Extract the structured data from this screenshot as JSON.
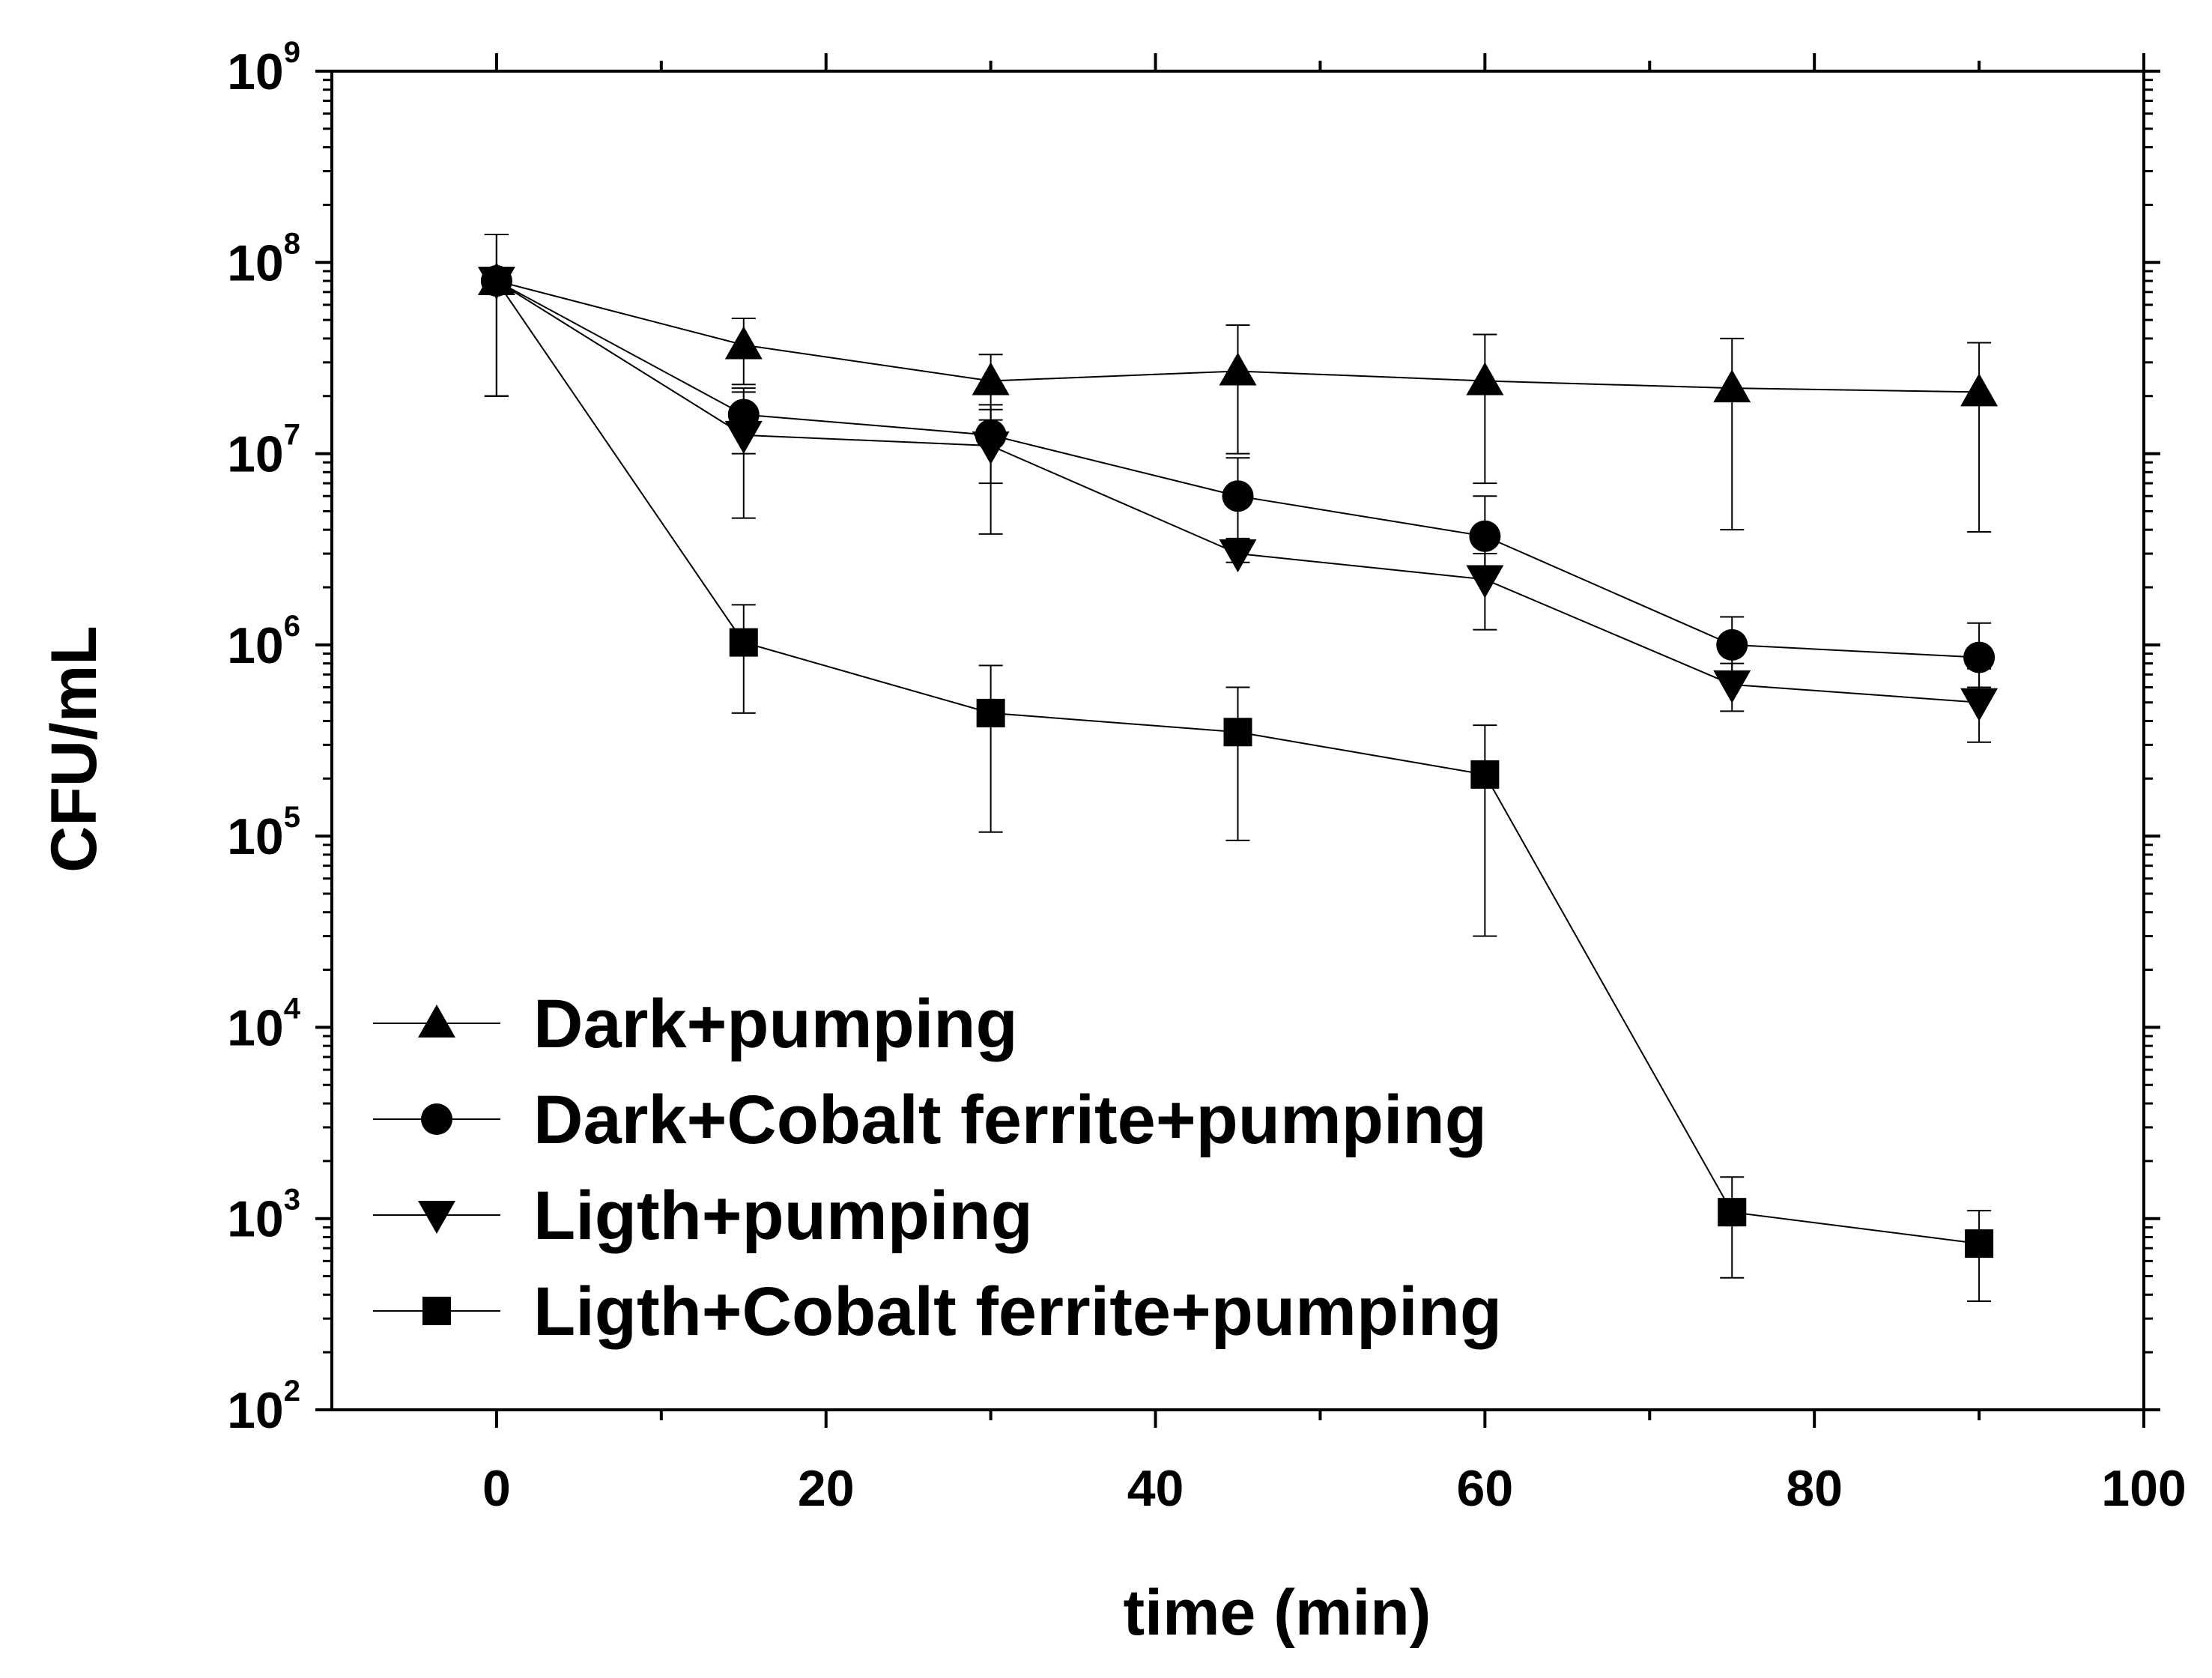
{
  "chart_data": {
    "type": "line",
    "title": "",
    "xlabel": "time (min)",
    "ylabel": "CFU/mL",
    "xlim": [
      -10,
      100
    ],
    "ylim": [
      100,
      1000000000
    ],
    "yscale": "log",
    "xticks": [
      "0",
      "20",
      "40",
      "60",
      "80",
      "100"
    ],
    "yticks": [
      {
        "base": "10",
        "exp": "2"
      },
      {
        "base": "10",
        "exp": "3"
      },
      {
        "base": "10",
        "exp": "4"
      },
      {
        "base": "10",
        "exp": "5"
      },
      {
        "base": "10",
        "exp": "6"
      },
      {
        "base": "10",
        "exp": "7"
      },
      {
        "base": "10",
        "exp": "8"
      },
      {
        "base": "10",
        "exp": "9"
      }
    ],
    "legend_position": "bottom-left",
    "x": [
      0,
      15,
      30,
      45,
      60,
      75,
      90
    ],
    "series": [
      {
        "name": "Dark+pumping",
        "marker": "triangle-up",
        "values": [
          80000000,
          37000000,
          24000000,
          27000000,
          24000000,
          22000000,
          21000000
        ],
        "err_low": [
          20000000,
          23000000,
          15000000,
          10000000,
          7000000,
          4000000,
          3900000
        ],
        "err_high": [
          140000000,
          51000000,
          33000000,
          47000000,
          42000000,
          40000000,
          38000000
        ]
      },
      {
        "name": "Dark+Cobalt ferrite+pumping",
        "marker": "circle",
        "values": [
          80000000,
          16000000,
          12500000,
          6000000,
          3700000,
          1000000,
          860000
        ],
        "err_low": [
          20000000,
          10000000,
          7000000,
          3500000,
          2500000,
          700000,
          600000
        ],
        "err_high": [
          140000000,
          22000000,
          18000000,
          9500000,
          6000000,
          1400000,
          1300000
        ]
      },
      {
        "name": "Ligth+pumping",
        "marker": "triangle-down",
        "values": [
          80000000,
          12500000,
          11000000,
          3000000,
          2200000,
          620000,
          500000
        ],
        "err_low": [
          20000000,
          4600000,
          3800000,
          2700000,
          1200000,
          450000,
          310000
        ],
        "err_high": [
          140000000,
          21000000,
          17000000,
          3600000,
          3000000,
          800000,
          750000
        ]
      },
      {
        "name": "Ligth+Cobalt ferrite+pumping",
        "marker": "square",
        "values": [
          80000000,
          1030000,
          440000,
          350000,
          210000,
          1080,
          740
        ],
        "err_low": [
          20000000,
          440000,
          105000,
          95000,
          30000,
          490,
          370
        ],
        "err_high": [
          140000000,
          1620000,
          780000,
          600000,
          380000,
          1650,
          1100
        ]
      }
    ]
  }
}
